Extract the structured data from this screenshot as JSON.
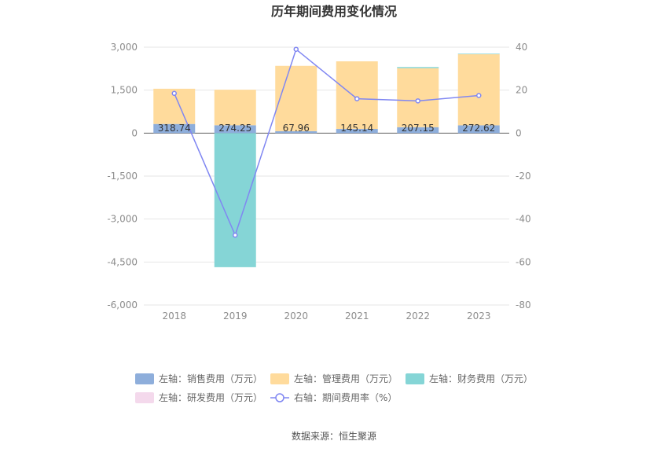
{
  "chart_data": {
    "type": "bar",
    "title": "历年期间费用变化情况",
    "categories": [
      "2018",
      "2019",
      "2020",
      "2021",
      "2022",
      "2023"
    ],
    "series": [
      {
        "name": "左轴：销售费用（万元）",
        "axis": "left",
        "kind": "bar",
        "color": "#8eaedb",
        "values": [
          318.74,
          274.25,
          67.96,
          145.14,
          207.15,
          272.62
        ]
      },
      {
        "name": "左轴：管理费用（万元）",
        "axis": "left",
        "kind": "bar",
        "color": "#ffdb9c",
        "values": [
          1230,
          1240,
          2280,
          2360,
          2060,
          2480
        ]
      },
      {
        "name": "左轴：财务费用（万元）",
        "axis": "left",
        "kind": "bar",
        "color": "#85d5d6",
        "values": [
          0,
          -4680,
          0,
          0,
          40,
          20
        ]
      },
      {
        "name": "左轴：研发费用（万元）",
        "axis": "left",
        "kind": "bar",
        "color": "#f4d9ec",
        "values": [
          0,
          0,
          0,
          0,
          0,
          0
        ]
      },
      {
        "name": "右轴：期间费用率（%）",
        "axis": "right",
        "kind": "line",
        "color": "#8087f2",
        "values": [
          18.5,
          -47.5,
          39,
          16,
          15,
          17.5
        ]
      }
    ],
    "data_labels": [
      "318.74",
      "274.25",
      "67.96",
      "145.14",
      "207.15",
      "272.62"
    ],
    "left_axis": {
      "min": -6000,
      "max": 3000,
      "ticks": [
        "3,000",
        "1,500",
        "0",
        "-1,500",
        "-3,000",
        "-4,500",
        "-6,000"
      ]
    },
    "right_axis": {
      "min": -80,
      "max": 40,
      "ticks": [
        "40",
        "20",
        "0",
        "-20",
        "-40",
        "-60",
        "-80"
      ]
    },
    "grid": true,
    "legend_position": "bottom"
  },
  "source_text": "数据来源：恒生聚源"
}
